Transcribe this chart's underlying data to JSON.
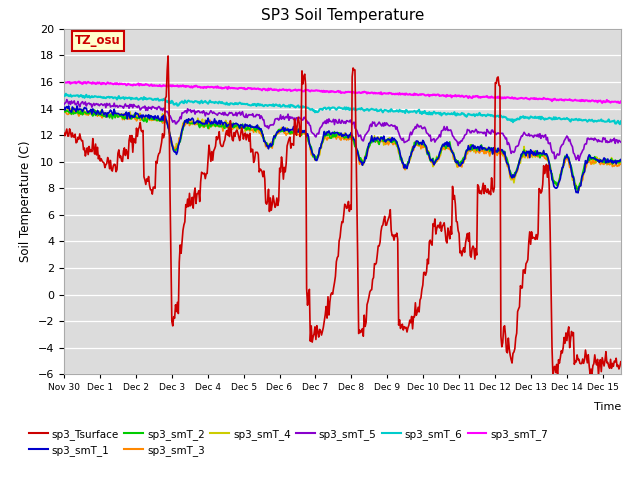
{
  "title": "SP3 Soil Temperature",
  "xlabel": "Time",
  "ylabel": "Soil Temperature (C)",
  "ylim": [
    -6,
    20
  ],
  "xlim": [
    0,
    15.5
  ],
  "plot_bg": "#dcdcdc",
  "xtick_labels": [
    "Nov 30",
    "Dec 1",
    "Dec 2",
    "Dec 3",
    "Dec 4",
    "Dec 5",
    "Dec 6",
    "Dec 7",
    "Dec 8",
    "Dec 9",
    "Dec 10",
    "Dec 11",
    "Dec 12",
    "Dec 13",
    "Dec 14",
    "Dec 15"
  ],
  "xtick_positions": [
    0,
    1,
    2,
    3,
    4,
    5,
    6,
    7,
    8,
    9,
    10,
    11,
    12,
    13,
    14,
    15
  ],
  "series_colors": {
    "sp3_Tsurface": "#cc0000",
    "sp3_smT_1": "#0000cc",
    "sp3_smT_2": "#00cc00",
    "sp3_smT_3": "#ff8800",
    "sp3_smT_4": "#cccc00",
    "sp3_smT_5": "#8800cc",
    "sp3_smT_6": "#00cccc",
    "sp3_smT_7": "#ff00ff"
  },
  "annotation_text": "TZ_osu",
  "annotation_box_color": "#ffffcc",
  "annotation_border_color": "#cc0000"
}
